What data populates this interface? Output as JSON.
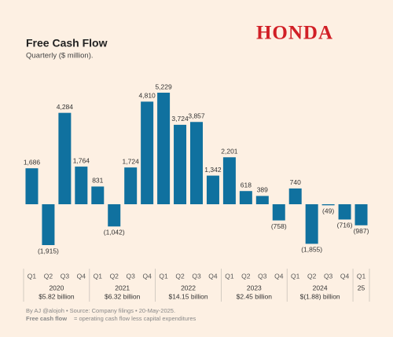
{
  "chart_data": {
    "type": "bar",
    "title": "Free Cash Flow",
    "subtitle": "Quarterly ($ million).",
    "logo": "HONDA",
    "color": "#10719f",
    "groups": [
      {
        "name": "2020",
        "note": "$5.82 billion",
        "categories": [
          "Q1",
          "Q2",
          "Q3",
          "Q4"
        ]
      },
      {
        "name": "2021",
        "note": "$6.32 billion",
        "categories": [
          "Q1",
          "Q2",
          "Q3",
          "Q4"
        ]
      },
      {
        "name": "2022",
        "note": "$14.15 billion",
        "categories": [
          "Q1",
          "Q2",
          "Q3",
          "Q4"
        ]
      },
      {
        "name": "2023",
        "note": "$2.45 billion",
        "categories": [
          "Q1",
          "Q2",
          "Q3",
          "Q4"
        ]
      },
      {
        "name": "2024",
        "note": "$(1.88) billion",
        "categories": [
          "Q1",
          "Q2",
          "Q3",
          "Q4"
        ]
      },
      {
        "name": "25",
        "categories": [
          "Q1"
        ]
      }
    ],
    "values": [
      1686,
      -1915,
      4284,
      1764,
      831,
      -1042,
      1724,
      4810,
      5229,
      3724,
      3857,
      1342,
      2201,
      618,
      389,
      -758,
      740,
      -1855,
      -49,
      -716,
      -987
    ],
    "value_labels": [
      "1,686",
      "(1,915)",
      "4,284",
      "1,764",
      "831",
      "(1,042)",
      "1,724",
      "4,810",
      "5,229",
      "3,724",
      "3,857",
      "1,342",
      "2,201",
      "618",
      "389",
      "(758)",
      "740",
      "(1,855)",
      "(49)",
      "(716)",
      "(987)"
    ],
    "byline": "By AJ @alojoh • Source: Company filings • 20-May-2025.",
    "note_term": "Free cash flow",
    "note_text": "= operating cash flow less capital expenditures"
  }
}
